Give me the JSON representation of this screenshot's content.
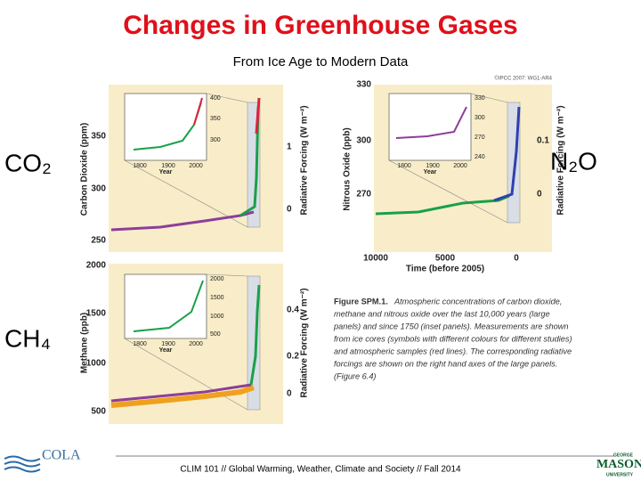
{
  "header": {
    "title": "Changes in Greenhouse Gases",
    "subtitle": "From Ice Age to Modern Data"
  },
  "gas_labels": {
    "co2": "CO₂",
    "n2o": "N₂O",
    "ch4": "CH₄"
  },
  "figure": {
    "copyright": "©IPCC 2007: WG1-AR4",
    "co2": {
      "ylabel": "Carbon Dioxide (ppm)",
      "y2label": "Radiative Forcing (W m⁻²)",
      "yticks": [
        "350",
        "300",
        "250"
      ],
      "y2ticks": [
        "1",
        "0"
      ],
      "inset": {
        "yticks": [
          "400",
          "350",
          "300"
        ],
        "xticks": [
          "1800",
          "1900",
          "2000"
        ],
        "xlabel": "Year"
      }
    },
    "n2o": {
      "ylabel": "Nitrous Oxide (ppb)",
      "y2label": "Radiative Forcing (W m⁻²)",
      "yticks": [
        "330",
        "300",
        "270"
      ],
      "y2ticks": [
        "0.1",
        "0"
      ],
      "xticks": [
        "10000",
        "5000",
        "0"
      ],
      "xlabel": "Time (before 2005)",
      "inset": {
        "yticks": [
          "330",
          "300",
          "270",
          "240"
        ],
        "xticks": [
          "1800",
          "1900",
          "2000"
        ],
        "xlabel": "Year"
      }
    },
    "ch4": {
      "ylabel": "Methane (ppb)",
      "y2label": "Radiative Forcing (W m⁻²)",
      "yticks": [
        "2000",
        "1500",
        "1000",
        "500"
      ],
      "y2ticks": [
        "0.4",
        "0.2",
        "0"
      ],
      "inset": {
        "yticks": [
          "2000",
          "1500",
          "1000",
          "500"
        ],
        "xticks": [
          "1800",
          "1900",
          "2000"
        ],
        "xlabel": "Year"
      }
    },
    "caption": {
      "label": "Figure SPM.1.",
      "lines": [
        "Atmospheric concentrations of carbon dioxide,",
        "methane and nitrous oxide over the last 10,000 years (large",
        "panels) and since 1750 (inset panels). Measurements are shown",
        "from ice cores (symbols with different colours for different studies)",
        "and atmospheric samples (red lines). The corresponding radiative",
        "forcings are shown on the right hand axes of the large panels.",
        "(Figure 6.4)"
      ]
    }
  },
  "footer": {
    "text": "CLIM 101 // Global Warming, Weather, Climate and Society // Fall 2014",
    "left_logo": "COLA",
    "right_logo_top": "GEORGE",
    "right_logo": "MASON",
    "right_logo_bottom": "UNIVERSITY"
  }
}
